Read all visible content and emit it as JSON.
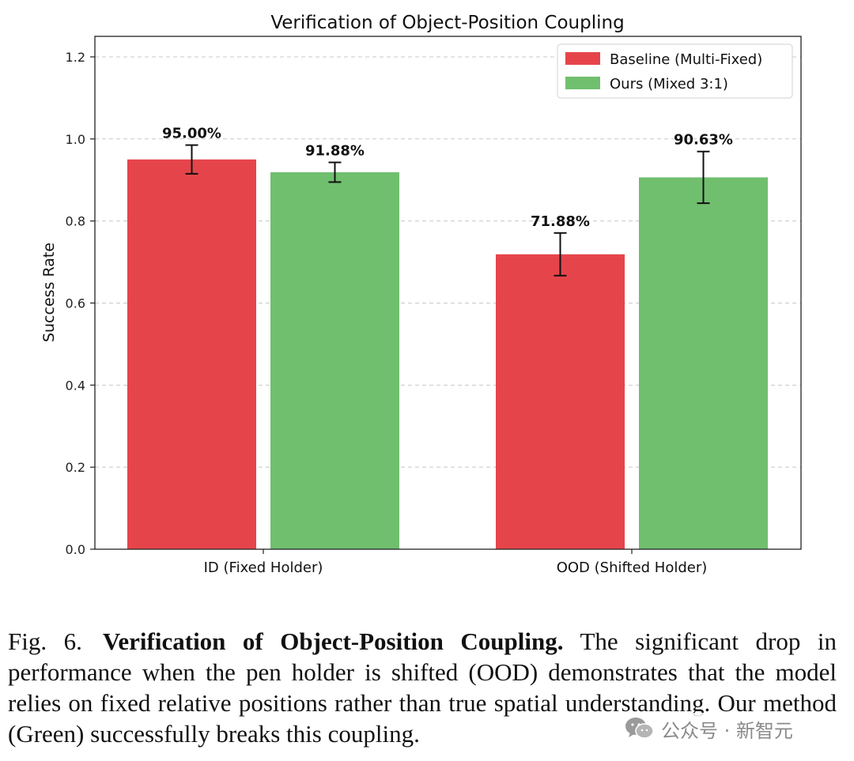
{
  "chart_data": {
    "type": "bar",
    "title": "Verification of Object-Position Coupling",
    "xlabel": "",
    "ylabel": "Success Rate",
    "categories": [
      "ID (Fixed Holder)",
      "OOD (Shifted Holder)"
    ],
    "series": [
      {
        "name": "Baseline (Multi-Fixed)",
        "color": "#e5454a",
        "values": [
          0.95,
          0.7188
        ],
        "errors": [
          0.035,
          0.052
        ],
        "labels": [
          "95.00%",
          "71.88%"
        ]
      },
      {
        "name": "Ours (Mixed 3:1)",
        "color": "#70bf6e",
        "values": [
          0.9188,
          0.9063
        ],
        "errors": [
          0.024,
          0.063
        ],
        "labels": [
          "91.88%",
          "90.63%"
        ]
      }
    ],
    "ylim": [
      0,
      1.25
    ],
    "yticks": [
      0.0,
      0.2,
      0.4,
      0.6,
      0.8,
      1.0,
      1.2
    ],
    "ytick_labels": [
      "0.0",
      "0.2",
      "0.4",
      "0.6",
      "0.8",
      "1.0",
      "1.2"
    ],
    "grid": "y-dashed",
    "legend_position": "top-right"
  },
  "caption": {
    "fig_label": "Fig. 6.",
    "title": "Verification of Object-Position Coupling.",
    "body": "The significant drop in performance when the pen holder is shifted (OOD) demonstrates that the model relies on fixed relative positions rather than true spatial understanding. Our method (Green) successfully breaks this coupling."
  },
  "watermark": {
    "text": "公众号 · 新智元",
    "icon": "wechat-icon"
  }
}
